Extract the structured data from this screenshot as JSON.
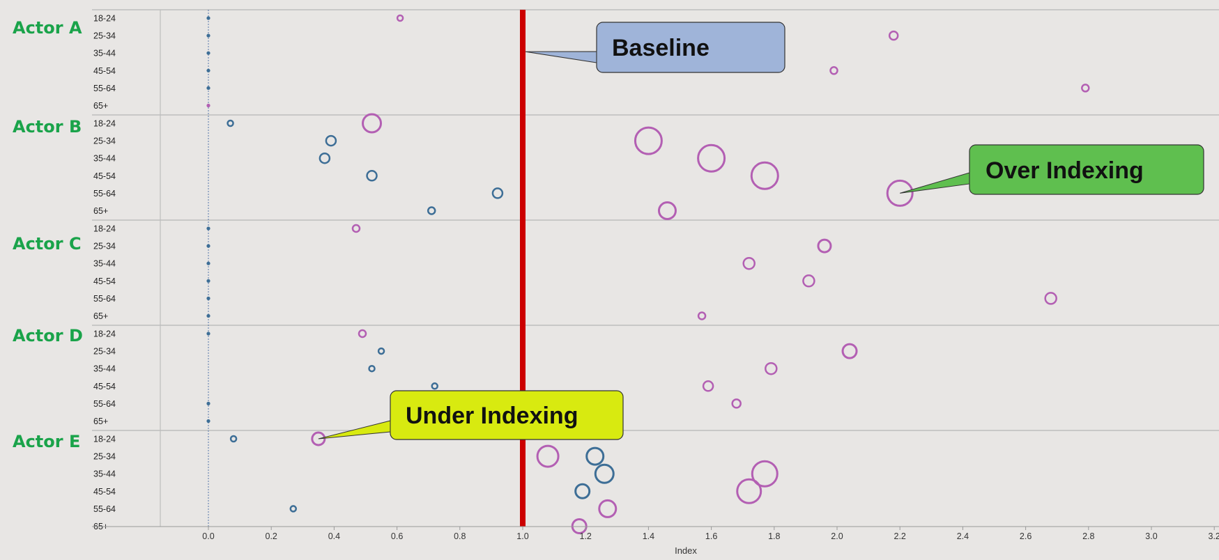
{
  "chart_data": {
    "type": "scatter",
    "xlabel": "Index",
    "xlim": [
      -0.15,
      3.22
    ],
    "x_ticks": [
      "0.0",
      "0.2",
      "0.4",
      "0.6",
      "0.8",
      "1.0",
      "1.2",
      "1.4",
      "1.6",
      "1.8",
      "2.0",
      "2.2",
      "2.4",
      "2.6",
      "2.8",
      "3.0",
      "3.2"
    ],
    "x_tick_values": [
      0,
      0.2,
      0.4,
      0.6,
      0.8,
      1.0,
      1.2,
      1.4,
      1.6,
      1.8,
      2.0,
      2.2,
      2.4,
      2.6,
      2.8,
      3.0,
      3.2
    ],
    "baseline": 1.0,
    "grid": false,
    "groups": [
      "Actor A",
      "Actor B",
      "Actor C",
      "Actor D",
      "Actor E"
    ],
    "age_bands": [
      "18-24",
      "25-34",
      "35-44",
      "45-54",
      "55-64",
      "65+"
    ],
    "colors": {
      "blue": "#3d6e96",
      "pink": "#b35fb3",
      "baseline": "#cc0000",
      "actor_label": "#1aa34a",
      "separator": "#bdbdbd",
      "zero_line": "#5577aa"
    },
    "series": [
      {
        "color": "blue",
        "points": [
          {
            "group": "Actor A",
            "age": "18-24",
            "x": 0.0,
            "size": 1
          },
          {
            "group": "Actor A",
            "age": "25-34",
            "x": 0.0,
            "size": 1
          },
          {
            "group": "Actor A",
            "age": "35-44",
            "x": 0.0,
            "size": 1
          },
          {
            "group": "Actor A",
            "age": "45-54",
            "x": 0.0,
            "size": 1
          },
          {
            "group": "Actor A",
            "age": "55-64",
            "x": 0.0,
            "size": 1
          },
          {
            "group": "Actor B",
            "age": "18-24",
            "x": 0.07,
            "size": 4
          },
          {
            "group": "Actor B",
            "age": "25-34",
            "x": 0.39,
            "size": 7
          },
          {
            "group": "Actor B",
            "age": "35-44",
            "x": 0.37,
            "size": 7
          },
          {
            "group": "Actor B",
            "age": "45-54",
            "x": 0.52,
            "size": 7
          },
          {
            "group": "Actor B",
            "age": "55-64",
            "x": 0.92,
            "size": 7
          },
          {
            "group": "Actor B",
            "age": "65+",
            "x": 0.71,
            "size": 5
          },
          {
            "group": "Actor C",
            "age": "18-24",
            "x": 0.0,
            "size": 1
          },
          {
            "group": "Actor C",
            "age": "25-34",
            "x": 0.0,
            "size": 1
          },
          {
            "group": "Actor C",
            "age": "35-44",
            "x": 0.0,
            "size": 1
          },
          {
            "group": "Actor C",
            "age": "45-54",
            "x": 0.0,
            "size": 1
          },
          {
            "group": "Actor C",
            "age": "55-64",
            "x": 0.0,
            "size": 1
          },
          {
            "group": "Actor C",
            "age": "65+",
            "x": 0.0,
            "size": 1
          },
          {
            "group": "Actor D",
            "age": "18-24",
            "x": 0.0,
            "size": 1
          },
          {
            "group": "Actor D",
            "age": "25-34",
            "x": 0.55,
            "size": 4
          },
          {
            "group": "Actor D",
            "age": "35-44",
            "x": 0.52,
            "size": 4
          },
          {
            "group": "Actor D",
            "age": "45-54",
            "x": 0.72,
            "size": 4
          },
          {
            "group": "Actor D",
            "age": "55-64",
            "x": 0.0,
            "size": 1
          },
          {
            "group": "Actor D",
            "age": "65+",
            "x": 0.0,
            "size": 1
          },
          {
            "group": "Actor E",
            "age": "18-24",
            "x": 0.08,
            "size": 4
          },
          {
            "group": "Actor E",
            "age": "25-34",
            "x": 1.23,
            "size": 12
          },
          {
            "group": "Actor E",
            "age": "35-44",
            "x": 1.26,
            "size": 13
          },
          {
            "group": "Actor E",
            "age": "45-54",
            "x": 1.19,
            "size": 10
          },
          {
            "group": "Actor E",
            "age": "55-64",
            "x": 0.27,
            "size": 4
          }
        ]
      },
      {
        "color": "pink",
        "points": [
          {
            "group": "Actor A",
            "age": "18-24",
            "x": 0.61,
            "size": 4
          },
          {
            "group": "Actor A",
            "age": "25-34",
            "x": 2.18,
            "size": 6
          },
          {
            "group": "Actor A",
            "age": "45-54",
            "x": 1.99,
            "size": 5
          },
          {
            "group": "Actor A",
            "age": "55-64",
            "x": 2.79,
            "size": 5
          },
          {
            "group": "Actor A",
            "age": "65+",
            "x": 0.0,
            "size": 1
          },
          {
            "group": "Actor B",
            "age": "18-24",
            "x": 0.52,
            "size": 13
          },
          {
            "group": "Actor B",
            "age": "25-34",
            "x": 1.4,
            "size": 19
          },
          {
            "group": "Actor B",
            "age": "35-44",
            "x": 1.6,
            "size": 19
          },
          {
            "group": "Actor B",
            "age": "45-54",
            "x": 1.77,
            "size": 19
          },
          {
            "group": "Actor B",
            "age": "55-64",
            "x": 2.2,
            "size": 18
          },
          {
            "group": "Actor B",
            "age": "65+",
            "x": 1.46,
            "size": 12
          },
          {
            "group": "Actor C",
            "age": "18-24",
            "x": 0.47,
            "size": 5
          },
          {
            "group": "Actor C",
            "age": "25-34",
            "x": 1.96,
            "size": 9
          },
          {
            "group": "Actor C",
            "age": "35-44",
            "x": 1.72,
            "size": 8
          },
          {
            "group": "Actor C",
            "age": "45-54",
            "x": 1.91,
            "size": 8
          },
          {
            "group": "Actor C",
            "age": "55-64",
            "x": 2.68,
            "size": 8
          },
          {
            "group": "Actor C",
            "age": "65+",
            "x": 1.57,
            "size": 5
          },
          {
            "group": "Actor D",
            "age": "18-24",
            "x": 0.49,
            "size": 5
          },
          {
            "group": "Actor D",
            "age": "25-34",
            "x": 2.04,
            "size": 10
          },
          {
            "group": "Actor D",
            "age": "35-44",
            "x": 1.79,
            "size": 8
          },
          {
            "group": "Actor D",
            "age": "45-54",
            "x": 1.59,
            "size": 7
          },
          {
            "group": "Actor D",
            "age": "55-64",
            "x": 1.68,
            "size": 6
          },
          {
            "group": "Actor E",
            "age": "18-24",
            "x": 0.35,
            "size": 9
          },
          {
            "group": "Actor E",
            "age": "25-34",
            "x": 1.08,
            "size": 15
          },
          {
            "group": "Actor E",
            "age": "35-44",
            "x": 1.77,
            "size": 18
          },
          {
            "group": "Actor E",
            "age": "45-54",
            "x": 1.72,
            "size": 17
          },
          {
            "group": "Actor E",
            "age": "55-64",
            "x": 1.27,
            "size": 12
          },
          {
            "group": "Actor E",
            "age": "65+",
            "x": 1.18,
            "size": 10
          }
        ]
      }
    ],
    "annotations": [
      {
        "text": "Baseline",
        "fill": "#9fb4d9",
        "target": {
          "group": "Actor A",
          "age": "35-44",
          "x": 1.0
        }
      },
      {
        "text": "Over Indexing",
        "fill": "#5fbf4f",
        "target": {
          "group": "Actor B",
          "age": "55-64",
          "x": 2.2
        }
      },
      {
        "text": "Under Indexing",
        "fill": "#d8ea10",
        "target": {
          "group": "Actor E",
          "age": "18-24",
          "x": 0.35
        }
      }
    ]
  }
}
